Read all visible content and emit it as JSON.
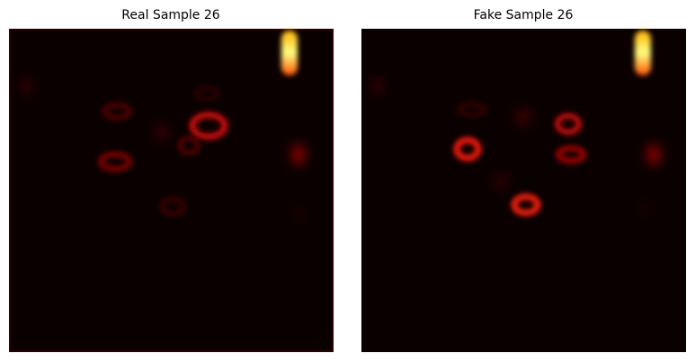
{
  "panels": [
    {
      "title": "Real Sample 26"
    },
    {
      "title": "Fake Sample 26"
    }
  ]
}
